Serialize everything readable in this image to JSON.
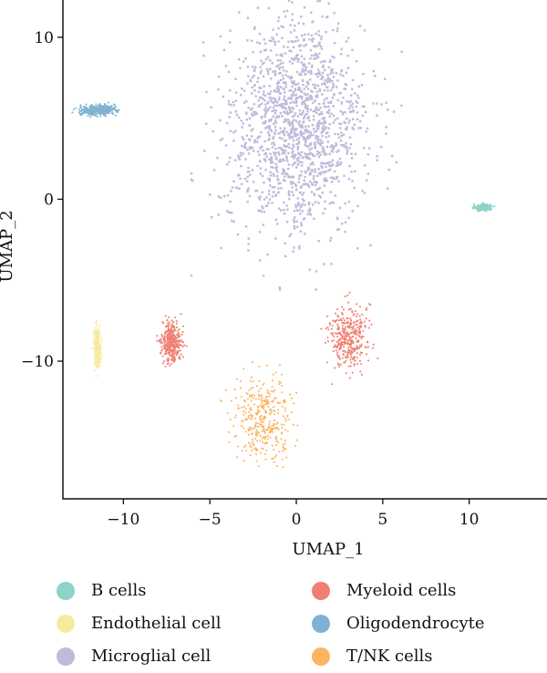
{
  "chart_data": {
    "type": "scatter",
    "xlabel": "UMAP_1",
    "ylabel": "UMAP_2",
    "xlim": [
      -13.5,
      14.5
    ],
    "ylim": [
      -18.5,
      12.3
    ],
    "xticks": [
      -10,
      -5,
      0,
      5,
      10
    ],
    "yticks": [
      -10,
      0,
      10
    ],
    "x_tick_labels": [
      "−10",
      "−5",
      "0",
      "5",
      "10"
    ],
    "y_tick_labels": [
      "−10",
      "0",
      "10"
    ],
    "grid": false,
    "legend_position": "bottom",
    "series": [
      {
        "name": "B cells",
        "color": "#8dd3c7",
        "clusters": [
          {
            "center": [
              10.8,
              -0.5
            ],
            "spread": [
              0.35,
              0.15
            ]
          }
        ]
      },
      {
        "name": "Endothelial cell",
        "color": "#f5eba0",
        "clusters": [
          {
            "center": [
              -11.5,
              -9.2
            ],
            "spread": [
              0.15,
              0.9
            ]
          }
        ]
      },
      {
        "name": "Microglial cell",
        "color": "#bebada",
        "clusters": [
          {
            "center": [
              0.0,
              4.5
            ],
            "spread": [
              3.2,
              5.3
            ]
          }
        ]
      },
      {
        "name": "Myeloid cells",
        "color": "#f07f72",
        "clusters": [
          {
            "center": [
              -7.2,
              -8.8
            ],
            "spread": [
              0.45,
              1.0
            ]
          },
          {
            "center": [
              3.0,
              -8.5
            ],
            "spread": [
              0.9,
              1.6
            ]
          }
        ]
      },
      {
        "name": "Oligodendrocyte",
        "color": "#80b1d3",
        "clusters": [
          {
            "center": [
              -11.5,
              5.5
            ],
            "spread": [
              0.8,
              0.25
            ]
          }
        ]
      },
      {
        "name": "T/NK cells",
        "color": "#fdb462",
        "clusters": [
          {
            "center": [
              -1.9,
              -13.5
            ],
            "spread": [
              1.4,
              2.0
            ]
          }
        ]
      }
    ]
  }
}
